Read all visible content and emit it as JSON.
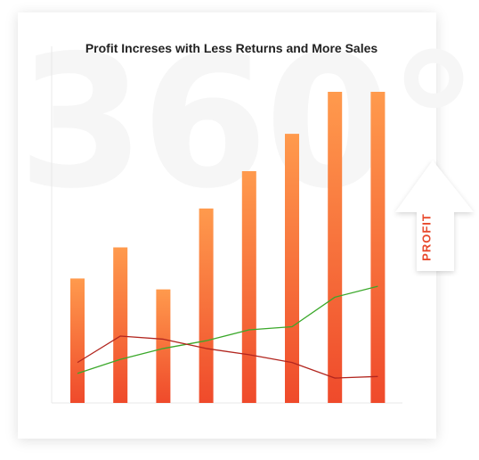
{
  "watermark_text": "360°",
  "badge": {
    "label": "PROFIT"
  },
  "colors": {
    "bar_top": "#ff9a4d",
    "bar_bottom": "#ef4a2b",
    "sales_line": "#3aa82a",
    "returns_line": "#b2261f",
    "profit_label": "#e8492c"
  },
  "chart_data": {
    "type": "bar",
    "title": "Profit Increses with Less Returns and More Sales",
    "xlabel": "",
    "ylabel": "",
    "ylim": [
      0,
      100
    ],
    "categories": [
      "",
      "",
      "",
      "",
      "",
      "",
      "",
      ""
    ],
    "series": [
      {
        "type": "bar",
        "values": [
          40,
          50,
          36.5,
          62.5,
          74.5,
          86.5,
          100,
          100
        ]
      },
      {
        "type": "line",
        "color": "green",
        "values": [
          9.5,
          14,
          17.5,
          20,
          23.5,
          24.5,
          34,
          37.5
        ]
      },
      {
        "type": "line",
        "color": "red",
        "values": [
          13,
          21.5,
          20.5,
          17.5,
          15.5,
          13,
          8,
          8.5
        ]
      }
    ],
    "grid": false,
    "legend": "none"
  }
}
